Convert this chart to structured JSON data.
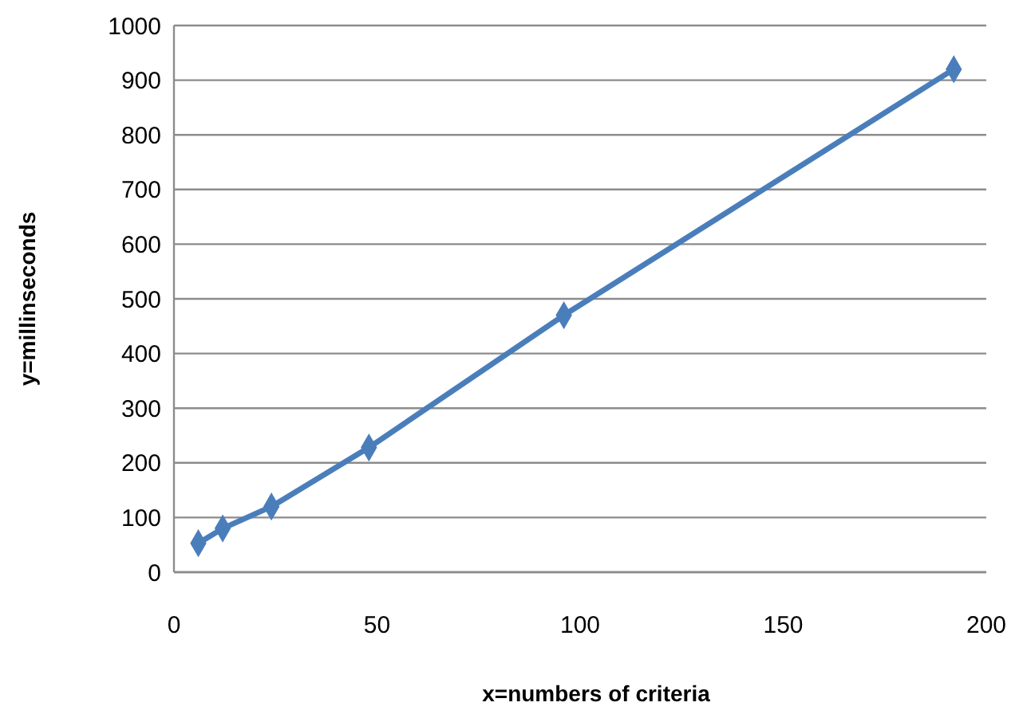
{
  "chart_data": {
    "type": "line",
    "xlabel": "x=numbers of criteria",
    "ylabel": "y=millinseconds",
    "x": [
      6,
      12,
      24,
      48,
      96,
      192
    ],
    "series": [
      {
        "color": "#4a7ebb",
        "values": [
          53,
          80,
          120,
          228,
          470,
          920
        ]
      }
    ],
    "xlim": [
      0,
      200
    ],
    "xticks": [
      0,
      50,
      100,
      150,
      200
    ],
    "ylim": [
      0,
      1000
    ],
    "yticks": [
      0,
      100,
      200,
      300,
      400,
      500,
      600,
      700,
      800,
      900,
      1000
    ],
    "grid": "y",
    "marker": "diamond",
    "line_style": "solid"
  }
}
